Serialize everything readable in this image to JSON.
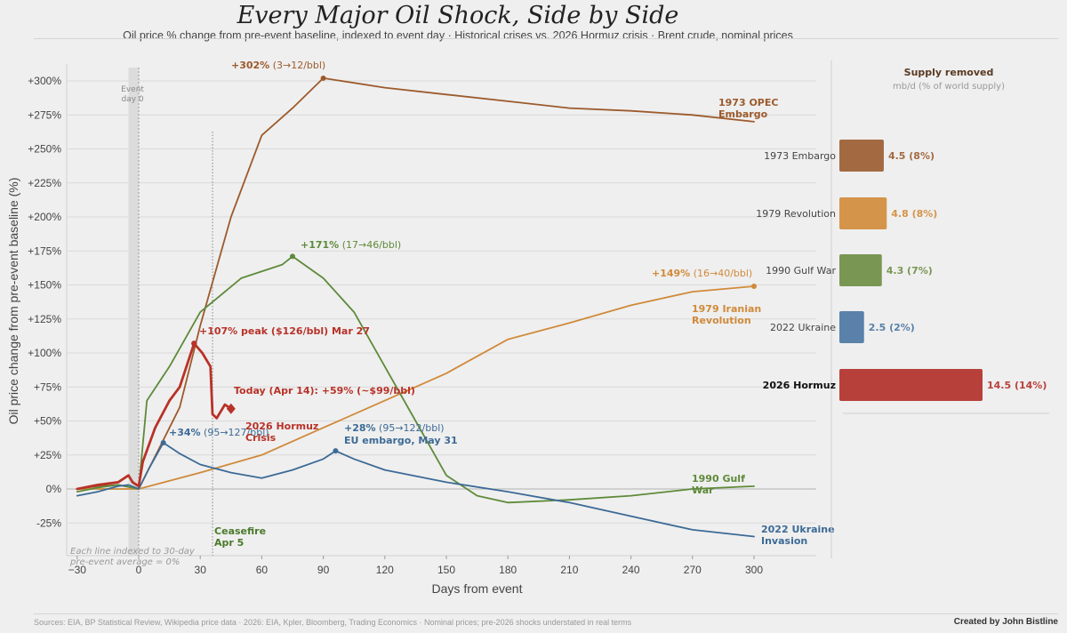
{
  "header": {
    "title": "Every Major Oil Shock, Side by Side",
    "subtitle": "Oil price % change from pre-event baseline, indexed to event day  ·  Historical crises vs. 2026 Hormuz crisis  ·  Brent crude, nominal prices"
  },
  "footer": {
    "sources": "Sources: EIA, BP Statistical Review, Wikipedia price data  ·  2026: EIA, Kpler, Bloomberg, Trading Economics  ·  Nominal prices; pre-2026 shocks understated in real terms",
    "credit": "Created by John Bistline"
  },
  "chart_data": [
    {
      "type": "line",
      "xlabel": "Days from event",
      "ylabel": "Oil price change from pre-event baseline (%)",
      "xlim": [
        -30,
        330
      ],
      "ylim": [
        -50,
        312
      ],
      "x_ticks": [
        -30,
        0,
        30,
        60,
        90,
        120,
        150,
        180,
        210,
        240,
        270,
        300
      ],
      "x_tick_labels": [
        "−30",
        "0",
        "30",
        "60",
        "90",
        "120",
        "150",
        "180",
        "210",
        "240",
        "270",
        "300"
      ],
      "y_ticks": [
        -25,
        0,
        25,
        50,
        75,
        100,
        125,
        150,
        175,
        200,
        225,
        250,
        275,
        300
      ],
      "y_tick_labels": [
        "-25%",
        "0%",
        "+25%",
        "+50%",
        "+75%",
        "+100%",
        "+125%",
        "+150%",
        "+175%",
        "+200%",
        "+225%",
        "+250%",
        "+275%",
        "+300%"
      ],
      "grid": true,
      "event_band": {
        "x0": -5,
        "x1": 0,
        "label_lines": [
          "Event",
          "day 0"
        ]
      },
      "ceasefire": {
        "x": 36,
        "label_lines": [
          "Ceasefire",
          "Apr 5"
        ],
        "color": "#4a7a2a"
      },
      "baseline_note": [
        "Each line indexed to 30-day",
        "pre-event average = 0%"
      ],
      "series": [
        {
          "name_lines": [
            "1973 OPEC",
            "Embargo"
          ],
          "color": "#9c5a2c",
          "x": [
            -30,
            -20,
            -10,
            0,
            10,
            20,
            30,
            45,
            60,
            75,
            90,
            120,
            150,
            180,
            210,
            240,
            270,
            300
          ],
          "y": [
            0,
            2,
            3,
            0,
            30,
            60,
            120,
            200,
            260,
            280,
            302,
            295,
            290,
            285,
            280,
            278,
            275,
            270
          ],
          "peak": {
            "x": 90,
            "y": 302,
            "label_bold": "+302%",
            "label_rest": " (3→12/bbl)"
          }
        },
        {
          "name_lines": [
            "1979 Iranian",
            "Revolution"
          ],
          "color": "#d08a3a",
          "x": [
            -30,
            0,
            30,
            60,
            90,
            120,
            150,
            180,
            210,
            240,
            270,
            300
          ],
          "y": [
            0,
            0,
            12,
            25,
            45,
            65,
            85,
            110,
            122,
            135,
            145,
            149
          ],
          "peak": {
            "x": 300,
            "y": 149,
            "label_bold": "+149%",
            "label_rest": " (16→40/bbl)"
          }
        },
        {
          "name_lines": [
            "1990 Gulf",
            "War"
          ],
          "color": "#5e8a3a",
          "x": [
            -30,
            -20,
            -10,
            0,
            4,
            15,
            30,
            50,
            70,
            75,
            90,
            105,
            120,
            135,
            150,
            165,
            180,
            210,
            240,
            270,
            300
          ],
          "y": [
            -2,
            1,
            3,
            0,
            65,
            90,
            130,
            155,
            165,
            171,
            155,
            130,
            90,
            50,
            10,
            -5,
            -10,
            -8,
            -5,
            0,
            2
          ],
          "peak": {
            "x": 75,
            "y": 171,
            "label_bold": "+171%",
            "label_rest": " (17→46/bbl)"
          }
        },
        {
          "name_lines": [
            "2022 Ukraine",
            "Invasion"
          ],
          "color": "#3c6a96",
          "x": [
            -30,
            -20,
            -10,
            -5,
            0,
            5,
            12,
            20,
            30,
            45,
            60,
            75,
            90,
            96,
            105,
            120,
            150,
            180,
            210,
            240,
            270,
            300
          ],
          "y": [
            -5,
            -2,
            2,
            3,
            0,
            15,
            34,
            26,
            18,
            12,
            8,
            14,
            22,
            28,
            22,
            14,
            5,
            -2,
            -10,
            -20,
            -30,
            -35
          ],
          "peaks": [
            {
              "x": 12,
              "y": 34,
              "label_bold": "+34%",
              "label_rest": " (95→127/bbl)"
            },
            {
              "x": 96,
              "y": 28,
              "label_bold": "+28%",
              "label_rest": " (95→122/bbl)",
              "sub": "EU embargo, May 31"
            }
          ]
        },
        {
          "name_lines": [
            "2026 Hormuz",
            "Crisis"
          ],
          "color": "#b83228",
          "x": [
            -30,
            -20,
            -10,
            -5,
            -3,
            0,
            2,
            8,
            15,
            20,
            27,
            31,
            35,
            36,
            38,
            42,
            44
          ],
          "y": [
            0,
            3,
            5,
            10,
            5,
            2,
            20,
            45,
            65,
            75,
            107,
            100,
            90,
            55,
            52,
            62,
            60
          ],
          "peak": {
            "x": 27,
            "y": 107,
            "label": "+107% peak  ($126/bbl)  Mar 27"
          },
          "today": {
            "x": 45,
            "y": 59,
            "label": "Today (Apr 14): +59%  (~$99/bbl)"
          }
        }
      ]
    },
    {
      "type": "bar",
      "title": "Supply removed",
      "subtitle": "mb/d  (% of world supply)",
      "categories": [
        "1973 Embargo",
        "1979 Revolution",
        "1990 Gulf War",
        "2022 Ukraine",
        "2026 Hormuz"
      ],
      "values": [
        4.5,
        4.8,
        4.3,
        2.5,
        14.5
      ],
      "value_labels": [
        "4.5  (8%)",
        "4.8  (8%)",
        "4.3  (7%)",
        "2.5  (2%)",
        "14.5  (14%)"
      ],
      "colors": [
        "#a36a42",
        "#d4944a",
        "#799653",
        "#5a81a9",
        "#b8403b"
      ]
    }
  ]
}
